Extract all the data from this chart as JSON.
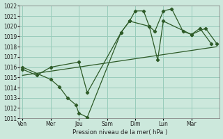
{
  "xlabel": "Pression niveau de la mer( hPa )",
  "bg_color": "#cce8dc",
  "grid_color": "#99ccbb",
  "line_color": "#2d5a27",
  "ylim": [
    1011,
    1022
  ],
  "yticks": [
    1011,
    1012,
    1013,
    1014,
    1015,
    1016,
    1017,
    1018,
    1019,
    1020,
    1021,
    1022
  ],
  "x_ticks_pos": [
    0,
    1,
    2,
    3,
    4,
    5,
    6
  ],
  "x_labels": [
    "Ven",
    "Mer",
    "Jeu",
    "Sam",
    "Dim",
    "Lun",
    "Mar"
  ],
  "xlim": [
    -0.1,
    7.0
  ],
  "line_jagged_x": [
    0.0,
    1.0,
    1.3,
    1.6,
    1.9,
    2.0,
    2.3,
    3.5,
    3.8,
    4.0,
    4.3,
    4.5,
    4.7,
    5.0,
    5.3,
    5.7,
    6.0,
    6.3,
    6.7
  ],
  "line_jagged_y": [
    1016.0,
    1014.8,
    1014.1,
    1013.0,
    1012.3,
    1011.5,
    1011.1,
    1019.4,
    1020.5,
    1021.5,
    1021.5,
    1020.0,
    1019.5,
    1021.5,
    1021.7,
    1019.5,
    1019.2,
    1019.8,
    1018.3
  ],
  "line_smooth_x": [
    0.0,
    0.5,
    1.0,
    2.0,
    2.3,
    3.5,
    3.8,
    4.5,
    4.8,
    5.0,
    6.0,
    6.5,
    6.9
  ],
  "line_smooth_y": [
    1015.8,
    1015.2,
    1016.0,
    1016.5,
    1013.5,
    1019.4,
    1020.5,
    1020.0,
    1016.7,
    1020.5,
    1019.2,
    1019.8,
    1018.3
  ],
  "trend_x": [
    0.0,
    6.9
  ],
  "trend_y": [
    1015.2,
    1018.0
  ]
}
